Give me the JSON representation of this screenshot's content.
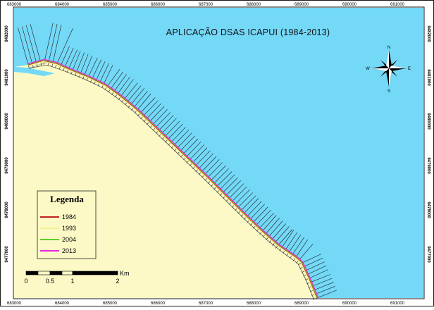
{
  "map": {
    "title": "APLICAÇÃO DSAS ICAPUI (1984-2013)",
    "colors": {
      "sea": "#74d8f7",
      "land": "#fcf9c6",
      "frame": "#1a1a1a",
      "transect": "#1c1c1c"
    },
    "easting_ticks": [
      "683000",
      "684000",
      "685000",
      "686000",
      "687000",
      "688000",
      "689000",
      "690000",
      "691000"
    ],
    "northing_ticks": [
      "9482000",
      "9481000",
      "9480000",
      "9479000",
      "9478000",
      "9477000"
    ],
    "compass": {
      "n": "N",
      "s": "S",
      "e": "E",
      "w": "W"
    },
    "legend": {
      "title": "Legenda",
      "items": [
        {
          "label": "1984",
          "color": "#c41f1f"
        },
        {
          "label": "1993",
          "color": "#f3f08c"
        },
        {
          "label": "2004",
          "color": "#5fcf2c"
        },
        {
          "label": "2013",
          "color": "#e82ad8"
        }
      ]
    },
    "scale_bar": {
      "unit": "Km",
      "labels": [
        "0",
        "0.5",
        "1",
        "2"
      ]
    }
  }
}
